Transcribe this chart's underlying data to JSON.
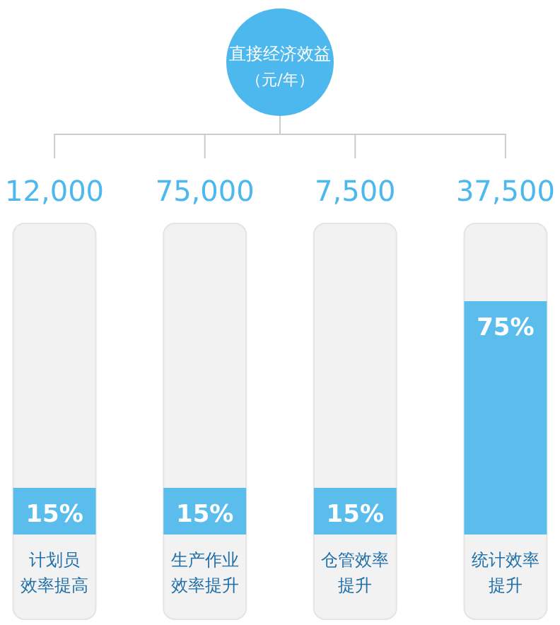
{
  "chart_data": {
    "type": "bar",
    "title": "直接经济效益",
    "subtitle": "（元/年）",
    "categories": [
      "计划员效率提高",
      "生产作业效率提升",
      "仓管效率提升",
      "统计效率提升"
    ],
    "values": [
      15,
      15,
      15,
      75
    ],
    "value_labels": [
      "15%",
      "15%",
      "15%",
      "75%"
    ],
    "color": "#5bbdec",
    "annotations": [
      "12,000",
      "75,000",
      "7,500",
      "37,500"
    ]
  }
}
